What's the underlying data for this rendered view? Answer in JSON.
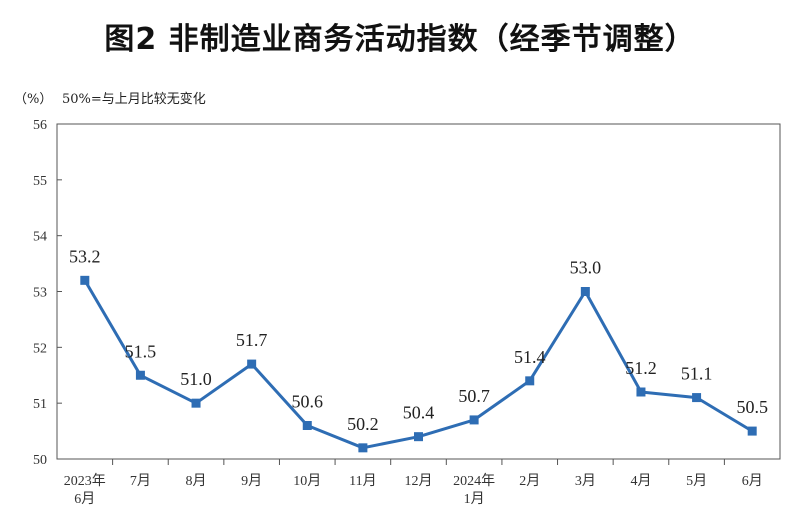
{
  "chart_data": {
    "type": "line",
    "title": "图2 非制造业商务活动指数（经季节调整）",
    "unit_label": "（%）",
    "reference_note": "50%=与上月比较无变化",
    "categories": [
      [
        "2023年",
        "6月"
      ],
      [
        "7月"
      ],
      [
        "8月"
      ],
      [
        "9月"
      ],
      [
        "10月"
      ],
      [
        "11月"
      ],
      [
        "12月"
      ],
      [
        "2024年",
        "1月"
      ],
      [
        "2月"
      ],
      [
        "3月"
      ],
      [
        "4月"
      ],
      [
        "5月"
      ],
      [
        "6月"
      ]
    ],
    "values": [
      53.2,
      51.5,
      51.0,
      51.7,
      50.6,
      50.2,
      50.4,
      50.7,
      51.4,
      53.0,
      51.2,
      51.1,
      50.5
    ],
    "value_labels": [
      "53.2",
      "51.5",
      "51.0",
      "51.7",
      "50.6",
      "50.2",
      "50.4",
      "50.7",
      "51.4",
      "53.0",
      "51.2",
      "51.1",
      "50.5"
    ],
    "ylim": [
      50,
      56
    ],
    "yticks": [
      50,
      51,
      52,
      53,
      54,
      55,
      56
    ],
    "xlabel": "",
    "ylabel": "",
    "grid": false,
    "line_color": "#2e6db4"
  }
}
